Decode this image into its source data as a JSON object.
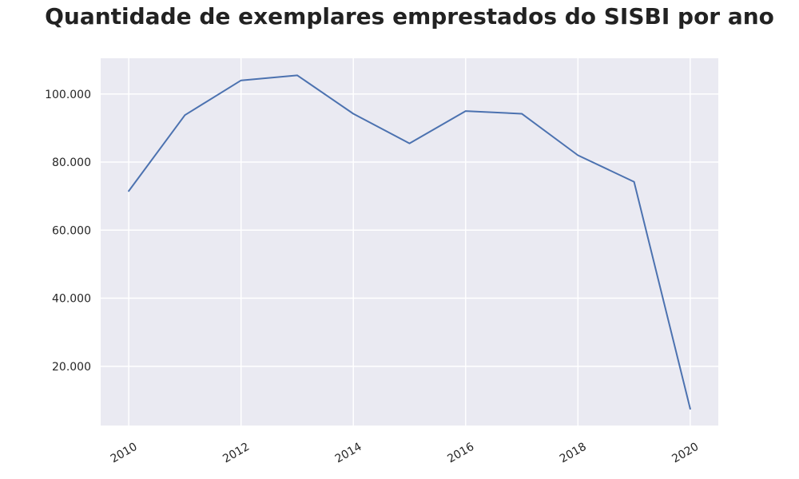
{
  "chart_data": {
    "type": "line",
    "title": "Quantidade de exemplares emprestados do SISBI por ano",
    "xlabel": "",
    "ylabel": "",
    "x": [
      2010,
      2011,
      2012,
      2013,
      2014,
      2015,
      2016,
      2017,
      2018,
      2019,
      2020
    ],
    "series": [
      {
        "values": [
          71500,
          93800,
          104000,
          105500,
          94200,
          85500,
          95000,
          94200,
          82000,
          74200,
          7500
        ],
        "color": "#4c72b0"
      }
    ],
    "xlim": [
      2009.5,
      2020.5
    ],
    "ylim": [
      2600,
      110500
    ],
    "xticks": [
      2010,
      2012,
      2014,
      2016,
      2018,
      2020
    ],
    "xtick_labels": [
      "2010",
      "2012",
      "2014",
      "2016",
      "2018",
      "2020"
    ],
    "yticks": [
      20000,
      40000,
      60000,
      80000,
      100000
    ],
    "ytick_labels": [
      "20.000",
      "40.000",
      "60.000",
      "80.000",
      "100.000"
    ],
    "grid": true,
    "background_color": "#eaeaf2",
    "grid_color": "#ffffff",
    "legend": "none"
  }
}
